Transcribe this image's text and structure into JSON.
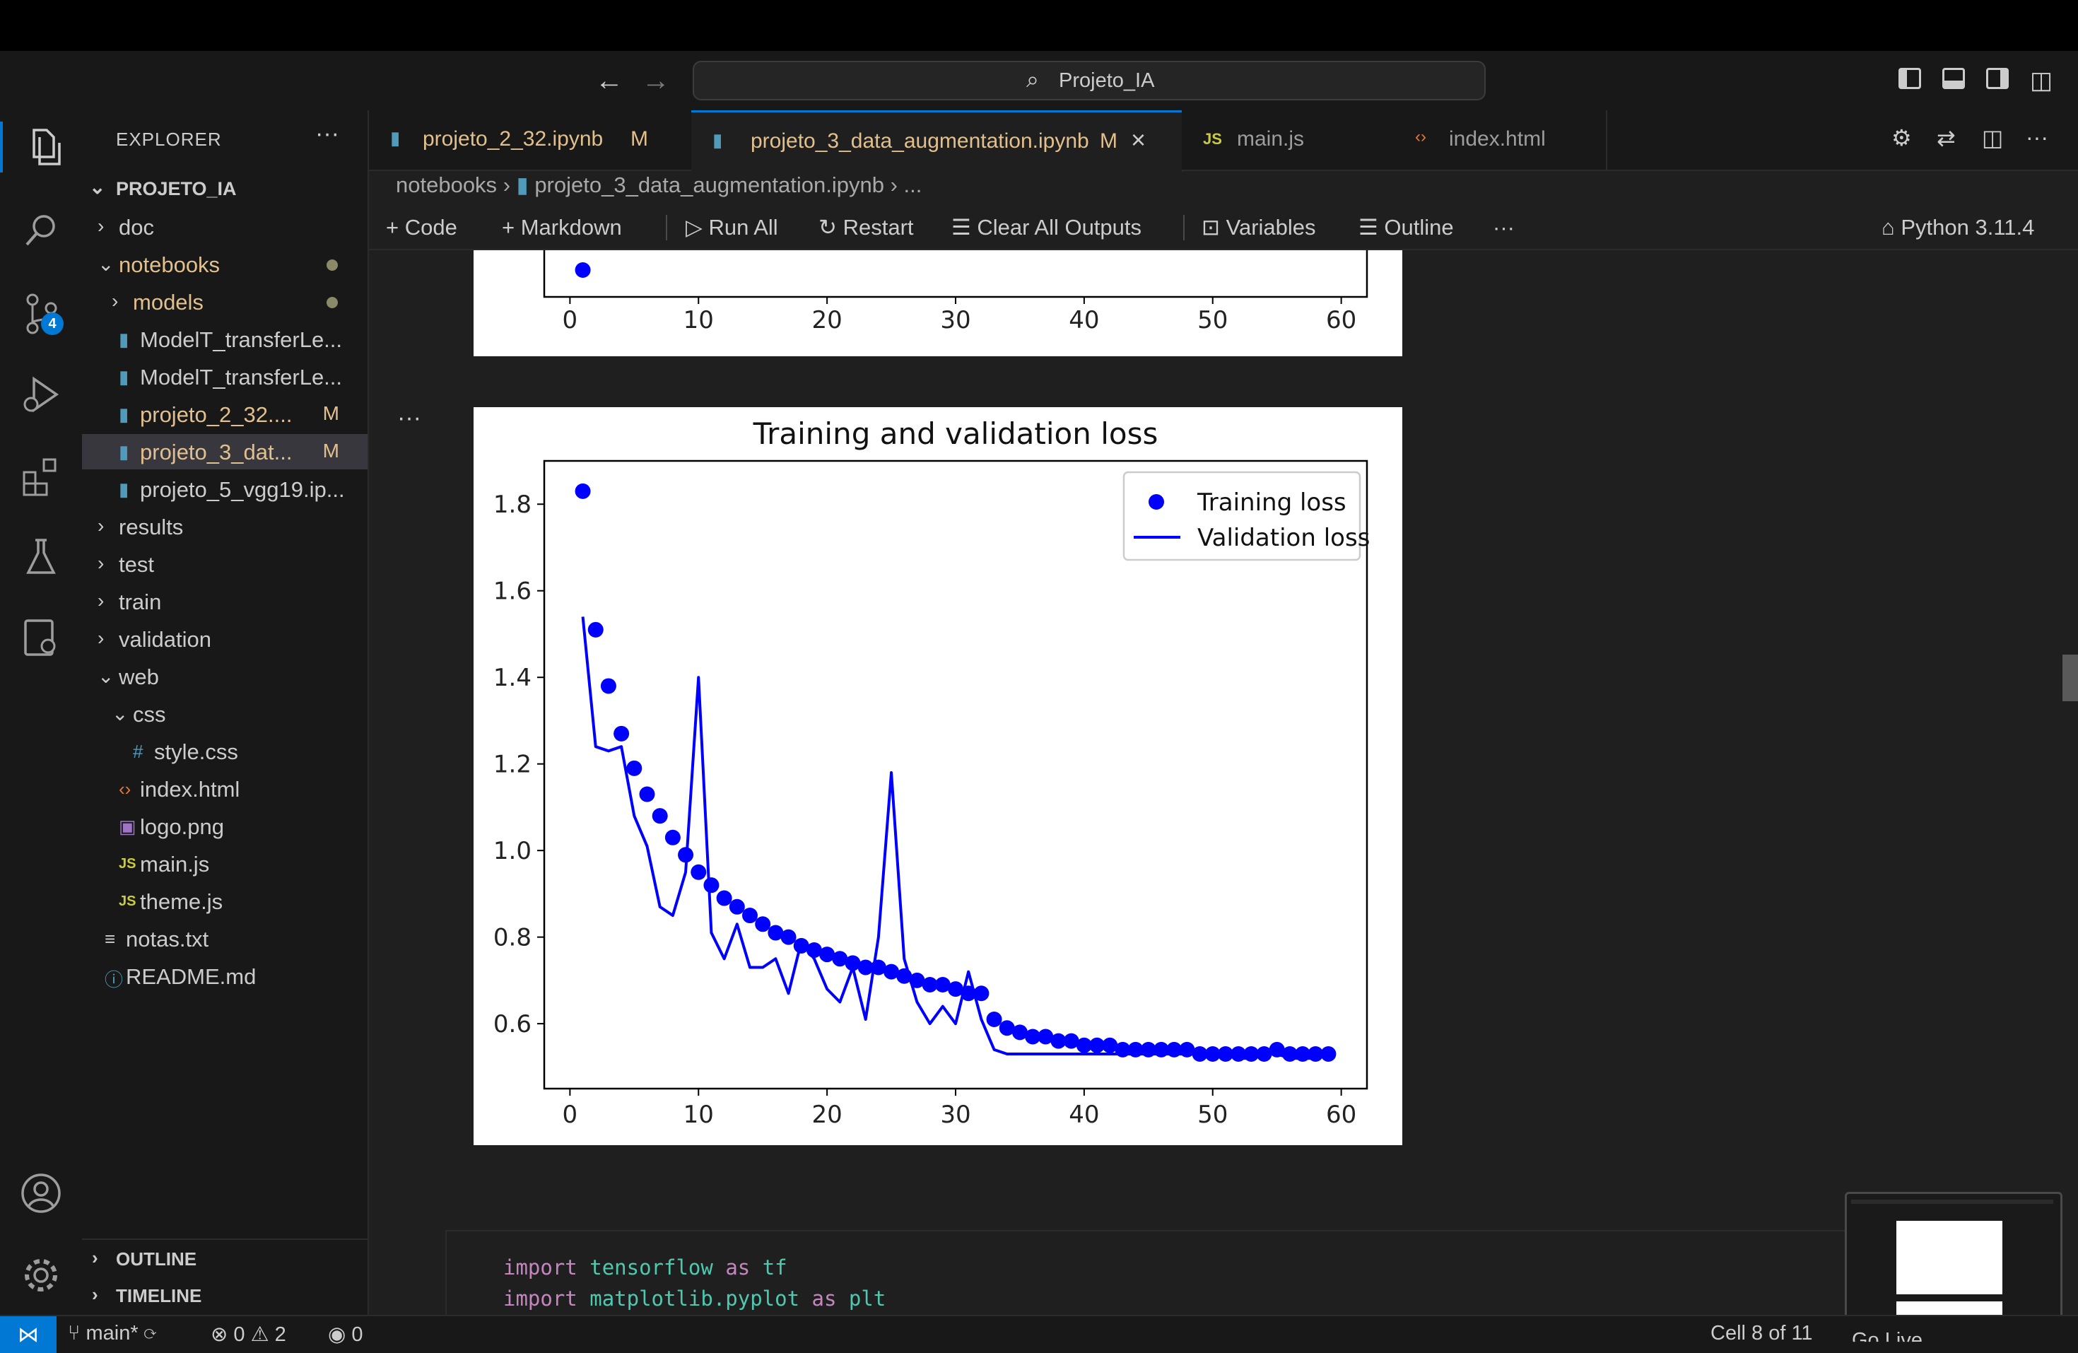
{
  "window": {
    "title": "Projeto_IA"
  },
  "activity_bar": {
    "source_control_badge": "4"
  },
  "explorer": {
    "header": "EXPLORER",
    "root": "PROJETO_IA",
    "items": [
      {
        "label": "doc",
        "kind": "folder",
        "expanded": false,
        "indent": 0
      },
      {
        "label": "notebooks",
        "kind": "folder",
        "expanded": true,
        "indent": 0,
        "dot": true
      },
      {
        "label": "models",
        "kind": "folder",
        "expanded": false,
        "indent": 1,
        "dot": true
      },
      {
        "label": "ModelT_transferLe...",
        "kind": "notebook",
        "indent": 1
      },
      {
        "label": "ModelT_transferLe...",
        "kind": "notebook",
        "indent": 1
      },
      {
        "label": "projeto_2_32....",
        "kind": "notebook",
        "indent": 1,
        "mod": "M"
      },
      {
        "label": "projeto_3_dat...",
        "kind": "notebook",
        "indent": 1,
        "mod": "M",
        "selected": true
      },
      {
        "label": "projeto_5_vgg19.ip...",
        "kind": "notebook",
        "indent": 1
      },
      {
        "label": "results",
        "kind": "folder",
        "expanded": false,
        "indent": 0
      },
      {
        "label": "test",
        "kind": "folder",
        "expanded": false,
        "indent": 0
      },
      {
        "label": "train",
        "kind": "folder",
        "expanded": false,
        "indent": 0
      },
      {
        "label": "validation",
        "kind": "folder",
        "expanded": false,
        "indent": 0
      },
      {
        "label": "web",
        "kind": "folder",
        "expanded": true,
        "indent": 0
      },
      {
        "label": "css",
        "kind": "folder",
        "expanded": true,
        "indent": 1
      },
      {
        "label": "style.css",
        "kind": "css",
        "indent": 2
      },
      {
        "label": "index.html",
        "kind": "html",
        "indent": 1
      },
      {
        "label": "logo.png",
        "kind": "image",
        "indent": 1
      },
      {
        "label": "main.js",
        "kind": "js",
        "indent": 1
      },
      {
        "label": "theme.js",
        "kind": "js",
        "indent": 1
      },
      {
        "label": "notas.txt",
        "kind": "txt",
        "indent": 0
      },
      {
        "label": "README.md",
        "kind": "md",
        "indent": 0
      }
    ],
    "outline_label": "OUTLINE",
    "timeline_label": "TIMELINE"
  },
  "tabs": [
    {
      "label": "projeto_2_32.ipynb",
      "mod": "M",
      "icon": "notebook"
    },
    {
      "label": "projeto_3_data_augmentation.ipynb",
      "mod": "M",
      "icon": "notebook",
      "active": true
    },
    {
      "label": "main.js",
      "icon": "js"
    },
    {
      "label": "index.html",
      "icon": "html"
    }
  ],
  "breadcrumb": {
    "folder": "notebooks",
    "file": "projeto_3_data_augmentation.ipynb",
    "tail": "..."
  },
  "notebook_toolbar": {
    "code": "Code",
    "markdown": "Markdown",
    "run_all": "Run All",
    "restart": "Restart",
    "clear_all": "Clear All Outputs",
    "variables": "Variables",
    "outline": "Outline",
    "kernel": "Python 3.11.4"
  },
  "chart_data": [
    {
      "type": "scatter",
      "title": "",
      "note": "upper plot, partially scrolled out of view",
      "x_ticks": [
        0,
        10,
        20,
        30,
        40,
        50,
        60
      ],
      "visible_points": [
        {
          "x": 1
        }
      ]
    },
    {
      "type": "line",
      "title": "Training and validation loss",
      "xlabel": "",
      "ylabel": "",
      "xlim": [
        -2,
        62
      ],
      "ylim": [
        0.45,
        1.9
      ],
      "x_ticks": [
        0,
        10,
        20,
        30,
        40,
        50,
        60
      ],
      "y_ticks": [
        0.6,
        0.8,
        1.0,
        1.2,
        1.4,
        1.6,
        1.8
      ],
      "legend_position": "top-right",
      "series": [
        {
          "name": "Training loss",
          "style": "markers",
          "color": "#0000ff",
          "x": [
            1,
            2,
            3,
            4,
            5,
            6,
            7,
            8,
            9,
            10,
            11,
            12,
            13,
            14,
            15,
            16,
            17,
            18,
            19,
            20,
            21,
            22,
            23,
            24,
            25,
            26,
            27,
            28,
            29,
            30,
            31,
            32,
            33,
            34,
            35,
            36,
            37,
            38,
            39,
            40,
            41,
            42,
            43,
            44,
            45,
            46,
            47,
            48,
            49,
            50,
            51,
            52,
            53,
            54,
            55,
            56,
            57,
            58,
            59
          ],
          "values": [
            1.83,
            1.51,
            1.38,
            1.27,
            1.19,
            1.13,
            1.08,
            1.03,
            0.99,
            0.95,
            0.92,
            0.89,
            0.87,
            0.85,
            0.83,
            0.81,
            0.8,
            0.78,
            0.77,
            0.76,
            0.75,
            0.74,
            0.73,
            0.73,
            0.72,
            0.71,
            0.7,
            0.69,
            0.69,
            0.68,
            0.67,
            0.67,
            0.61,
            0.59,
            0.58,
            0.57,
            0.57,
            0.56,
            0.56,
            0.55,
            0.55,
            0.55,
            0.54,
            0.54,
            0.54,
            0.54,
            0.54,
            0.54,
            0.53,
            0.53,
            0.53,
            0.53,
            0.53,
            0.53,
            0.54,
            0.53,
            0.53,
            0.53,
            0.53
          ]
        },
        {
          "name": "Validation loss",
          "style": "line",
          "color": "#0000ff",
          "x": [
            1,
            2,
            3,
            4,
            5,
            6,
            7,
            8,
            9,
            10,
            11,
            12,
            13,
            14,
            15,
            16,
            17,
            18,
            19,
            20,
            21,
            22,
            23,
            24,
            25,
            26,
            27,
            28,
            29,
            30,
            31,
            32,
            33,
            34,
            35,
            36,
            37,
            38,
            39,
            40,
            41,
            42,
            43,
            44,
            45,
            46,
            47,
            48,
            49,
            50,
            51,
            52,
            53,
            54,
            55,
            56,
            57,
            58,
            59
          ],
          "values": [
            1.54,
            1.24,
            1.23,
            1.24,
            1.08,
            1.01,
            0.87,
            0.85,
            0.95,
            1.4,
            0.81,
            0.75,
            0.83,
            0.73,
            0.73,
            0.75,
            0.67,
            0.79,
            0.75,
            0.68,
            0.65,
            0.73,
            0.61,
            0.8,
            1.18,
            0.75,
            0.65,
            0.6,
            0.64,
            0.6,
            0.72,
            0.61,
            0.54,
            0.53,
            0.53,
            0.53,
            0.53,
            0.53,
            0.53,
            0.53,
            0.53,
            0.53,
            0.53,
            0.53,
            0.53,
            0.53,
            0.53,
            0.53,
            0.53,
            0.53,
            0.53,
            0.52,
            0.52,
            0.53,
            0.53,
            0.52,
            0.52,
            0.52,
            0.53
          ]
        }
      ]
    }
  ],
  "code_cell": {
    "line1": {
      "kw1": "import",
      "mod": "tensorflow",
      "kw2": "as",
      "alias": "tf"
    },
    "line2": {
      "kw1": "import",
      "mod": "matplotlib.pyplot",
      "kw2": "as",
      "alias": "plt"
    }
  },
  "status_bar": {
    "branch": "main*",
    "errors": "0",
    "warnings": "2",
    "ports": "0",
    "cell_position": "Cell 8 of 11",
    "go_live": "Go Live"
  },
  "colors": {
    "accent": "#0078d4",
    "modified": "#e2c08d",
    "plot_blue": "#0000ff"
  }
}
